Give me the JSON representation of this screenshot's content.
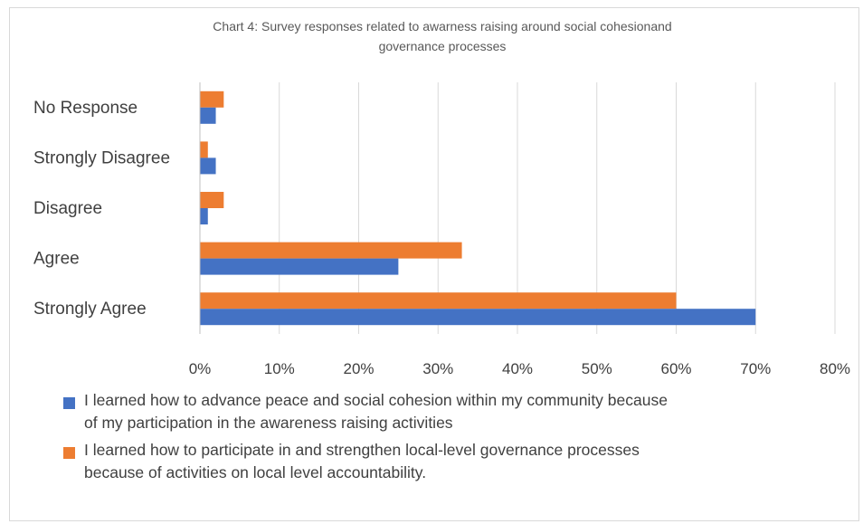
{
  "chart_data": {
    "type": "bar",
    "orientation": "horizontal",
    "title_lines": [
      "Chart 4: Survey responses related to awarness raising around social cohesionand",
      "governance processes"
    ],
    "categories": [
      "No Response",
      "Strongly Disagree",
      "Disagree",
      "Agree",
      "Strongly Agree"
    ],
    "series": [
      {
        "legend_lines": [
          "I learned how to advance peace and social cohesion within my community because",
          "of my participation in the awareness raising activities"
        ],
        "color": "#4472C4",
        "values": [
          2,
          2,
          1,
          25,
          70
        ]
      },
      {
        "legend_lines": [
          "I learned how to participate in and strengthen local-level governance processes",
          "because of activities on local level accountability."
        ],
        "color": "#ED7D31",
        "values": [
          3,
          1,
          3,
          33,
          60
        ]
      }
    ],
    "x_ticks": [
      "0%",
      "10%",
      "20%",
      "30%",
      "40%",
      "50%",
      "60%",
      "70%",
      "80%"
    ],
    "xlim": [
      0,
      80
    ],
    "grid": true,
    "gridline_color": "#d9d9d9",
    "legend_position": "bottom"
  }
}
